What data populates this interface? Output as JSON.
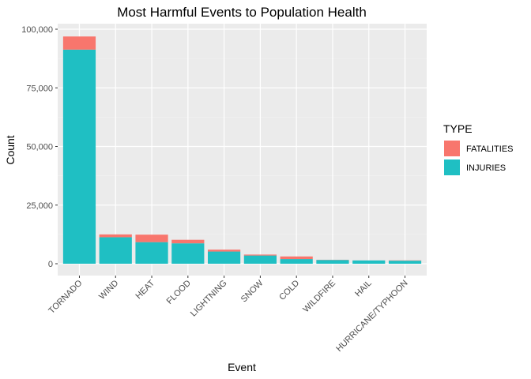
{
  "chart_data": {
    "type": "bar",
    "stacked": true,
    "title": "Most Harmful Events to Population Health",
    "xlabel": "Event",
    "ylabel": "Count",
    "ylim": [
      0,
      100000
    ],
    "yticks": [
      0,
      25000,
      50000,
      75000,
      100000
    ],
    "ytick_labels": [
      "0",
      "25,000",
      "50,000",
      "75,000",
      "100,000"
    ],
    "categories": [
      "TORNADO",
      "WIND",
      "HEAT",
      "FLOOD",
      "LIGHTNING",
      "SNOW",
      "COLD",
      "WILDFIRE",
      "HAIL",
      "HURRICANE/TYPHOON"
    ],
    "series": [
      {
        "name": "INJURIES",
        "color": "#1fbfc3",
        "values": [
          91300,
          11300,
          9200,
          8700,
          5200,
          3500,
          2000,
          1600,
          1400,
          1300
        ]
      },
      {
        "name": "FATALITIES",
        "color": "#f8766d",
        "values": [
          5600,
          1200,
          3200,
          1500,
          800,
          400,
          1100,
          90,
          20,
          130
        ]
      }
    ],
    "legend": {
      "title": "TYPE",
      "entries": [
        "FATALITIES",
        "INJURIES"
      ],
      "position": "right"
    },
    "grid": true,
    "panel_color": "#ebebeb"
  }
}
